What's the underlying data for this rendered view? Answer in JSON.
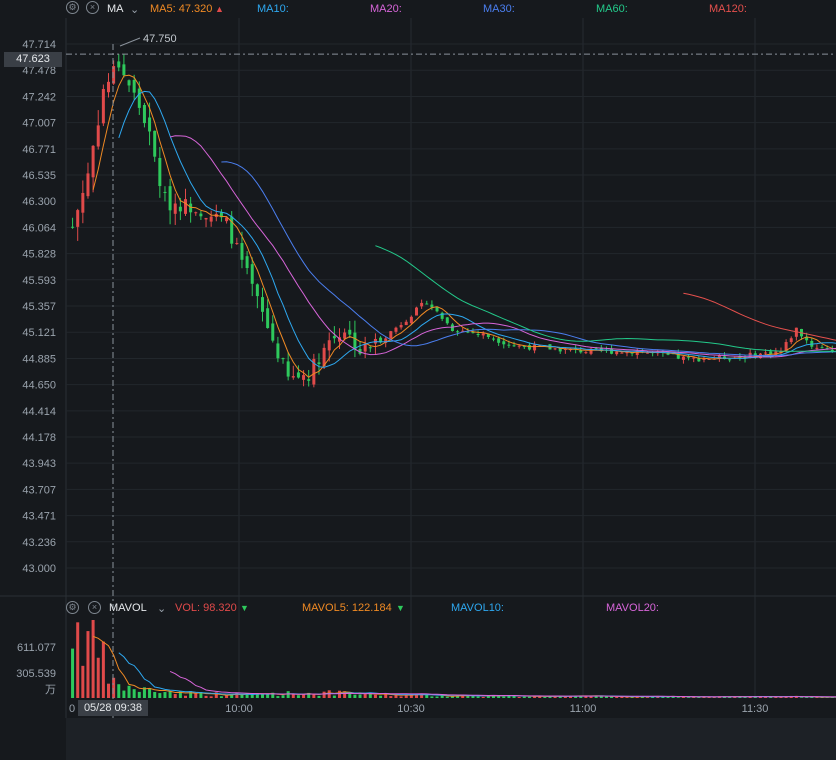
{
  "header_main": {
    "indicator": "MA",
    "ma5": "MA5: 47.320",
    "ma5_arrow": "▲",
    "ma10": "MA10:",
    "ma20": "MA20:",
    "ma30": "MA30:",
    "ma60": "MA60:",
    "ma120": "MA120:"
  },
  "header_vol": {
    "indicator": "MAVOL",
    "vol": "VOL: 98.320",
    "vol_arrow": "▼",
    "mavol5": "MAVOL5: 122.184",
    "mavol5_arrow": "▼",
    "mavol10": "MAVOL10:",
    "mavol20": "MAVOL20:"
  },
  "crosshair": {
    "price": "47.623",
    "time": "05/28 09:38"
  },
  "peak_label": "47.750",
  "colors": {
    "up": "#e04a4a",
    "down": "#2ec95c",
    "ma5": "#f08a24",
    "ma10": "#2ea8f0",
    "ma20": "#d765d9",
    "ma30": "#4b7ff0",
    "ma60": "#23c98a",
    "ma120": "#e5504d"
  },
  "chart_data": {
    "type": "candlestick",
    "x_ticks": [
      "10:00",
      "10:30",
      "11:00",
      "11:30"
    ],
    "price_ticks": [
      "47.714",
      "47.478",
      "47.242",
      "47.007",
      "46.771",
      "46.535",
      "46.300",
      "46.064",
      "45.828",
      "45.593",
      "45.357",
      "45.121",
      "44.885",
      "44.650",
      "44.414",
      "44.178",
      "43.943",
      "43.707",
      "43.471",
      "43.236",
      "43.000"
    ],
    "ylim": [
      43.0,
      47.714
    ],
    "vol_ticks": [
      "611.077",
      "305.539"
    ],
    "vol_unit": "万",
    "start_first_label": "0",
    "candle_count": 150,
    "close_anchors": [
      [
        0,
        46.07
      ],
      [
        3,
        46.55
      ],
      [
        6,
        47.3
      ],
      [
        9,
        47.55
      ],
      [
        11,
        47.35
      ],
      [
        14,
        47.05
      ],
      [
        18,
        46.3
      ],
      [
        24,
        46.25
      ],
      [
        30,
        46.1
      ],
      [
        36,
        45.4
      ],
      [
        42,
        44.7
      ],
      [
        46,
        44.75
      ],
      [
        50,
        45.05
      ],
      [
        53,
        45.15
      ],
      [
        56,
        44.95
      ],
      [
        60,
        45.05
      ],
      [
        64,
        45.2
      ],
      [
        69,
        45.4
      ],
      [
        74,
        45.15
      ],
      [
        80,
        45.1
      ],
      [
        86,
        45.0
      ],
      [
        92,
        44.98
      ],
      [
        100,
        44.95
      ],
      [
        110,
        44.95
      ],
      [
        120,
        44.88
      ],
      [
        130,
        44.9
      ],
      [
        138,
        44.95
      ],
      [
        141,
        45.15
      ],
      [
        144,
        45.0
      ],
      [
        150,
        44.95
      ]
    ],
    "volume_anchors": [
      [
        0,
        640
      ],
      [
        3,
        560
      ],
      [
        6,
        320
      ],
      [
        8,
        120
      ],
      [
        12,
        80
      ],
      [
        20,
        50
      ],
      [
        30,
        30
      ],
      [
        40,
        40
      ],
      [
        50,
        45
      ],
      [
        60,
        30
      ],
      [
        80,
        20
      ],
      [
        100,
        14
      ],
      [
        120,
        10
      ],
      [
        140,
        12
      ],
      [
        150,
        8
      ]
    ],
    "series": [
      {
        "name": "MA5",
        "value": "47.320"
      },
      {
        "name": "MA10"
      },
      {
        "name": "MA20"
      },
      {
        "name": "MA30"
      },
      {
        "name": "MA60"
      },
      {
        "name": "MA120"
      }
    ]
  }
}
